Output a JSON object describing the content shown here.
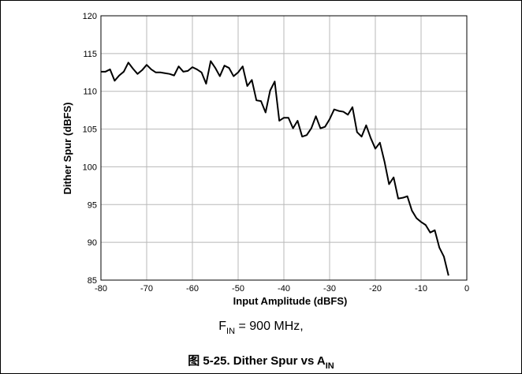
{
  "chart_data": {
    "type": "line",
    "title": {
      "text": "图 5-25. Dither Spur vs A",
      "sub": "IN"
    },
    "conditions": {
      "text": "F",
      "sub": "IN",
      "suffix": " = 900 MHz,"
    },
    "x_label": "Input Amplitude (dBFS)",
    "y_label": "Dither Spur (dBFS)",
    "x": [
      -80,
      -79,
      -78,
      -77,
      -76,
      -75,
      -74,
      -73,
      -72,
      -71,
      -70,
      -69,
      -68,
      -67,
      -66,
      -65,
      -64,
      -63,
      -62,
      -61,
      -60,
      -59,
      -58,
      -57,
      -56,
      -55,
      -54,
      -53,
      -52,
      -51,
      -50,
      -49,
      -48,
      -47,
      -46,
      -45,
      -44,
      -43,
      -42,
      -41,
      -40,
      -39,
      -38,
      -37,
      -36,
      -35,
      -34,
      -33,
      -32,
      -31,
      -30,
      -29,
      -28,
      -27,
      -26,
      -25,
      -24,
      -23,
      -22,
      -21,
      -20,
      -19,
      -18,
      -17,
      -16,
      -15,
      -14,
      -13,
      -12,
      -11,
      -10,
      -9,
      -8,
      -7,
      -6,
      -5,
      -4
    ],
    "series": [
      {
        "color": "#000000",
        "values": [
          112.6,
          112.6,
          112.9,
          111.4,
          112.1,
          112.6,
          113.8,
          113.0,
          112.3,
          112.8,
          113.5,
          112.9,
          112.5,
          112.5,
          112.4,
          112.3,
          112.1,
          113.3,
          112.6,
          112.7,
          113.2,
          112.9,
          112.5,
          111.0,
          114.0,
          113.1,
          112.0,
          113.4,
          113.1,
          112.0,
          112.5,
          113.3,
          110.7,
          111.5,
          108.8,
          108.7,
          107.2,
          110.1,
          111.3,
          106.1,
          106.5,
          106.5,
          105.1,
          106.1,
          104.0,
          104.2,
          105.1,
          106.7,
          105.1,
          105.3,
          106.3,
          107.6,
          107.4,
          107.3,
          106.9,
          107.9,
          104.6,
          104.0,
          105.5,
          103.8,
          102.4,
          103.2,
          100.7,
          97.7,
          98.6,
          95.8,
          95.9,
          96.1,
          94.2,
          93.2,
          92.7,
          92.3,
          91.3,
          91.6,
          89.3,
          88.1,
          85.6
        ]
      }
    ],
    "xlim": [
      -80,
      0
    ],
    "xticks": [
      -80,
      -70,
      -60,
      -50,
      -40,
      -30,
      -20,
      -10,
      0
    ],
    "ylim": [
      85,
      120
    ],
    "yticks": [
      85,
      90,
      95,
      100,
      105,
      110,
      115,
      120
    ],
    "grid": true
  }
}
